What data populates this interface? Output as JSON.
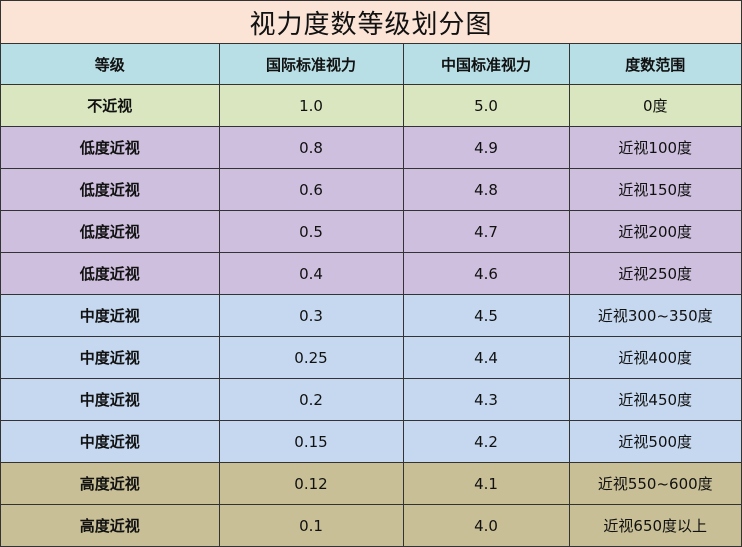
{
  "title": "视力度数等级划分图",
  "headers": [
    "等级",
    "国际标准视力",
    "中国标准视力",
    "度数范围"
  ],
  "rows": [
    {
      "grade": "不近视",
      "intl": "1.0",
      "cn": "5.0",
      "range": "0度",
      "tier": "none"
    },
    {
      "grade": "低度近视",
      "intl": "0.8",
      "cn": "4.9",
      "range": "近视100度",
      "tier": "low"
    },
    {
      "grade": "低度近视",
      "intl": "0.6",
      "cn": "4.8",
      "range": "近视150度",
      "tier": "low"
    },
    {
      "grade": "低度近视",
      "intl": "0.5",
      "cn": "4.7",
      "range": "近视200度",
      "tier": "low"
    },
    {
      "grade": "低度近视",
      "intl": "0.4",
      "cn": "4.6",
      "range": "近视250度",
      "tier": "low"
    },
    {
      "grade": "中度近视",
      "intl": "0.3",
      "cn": "4.5",
      "range": "近视300~350度",
      "tier": "mid"
    },
    {
      "grade": "中度近视",
      "intl": "0.25",
      "cn": "4.4",
      "range": "近视400度",
      "tier": "mid"
    },
    {
      "grade": "中度近视",
      "intl": "0.2",
      "cn": "4.3",
      "range": "近视450度",
      "tier": "mid"
    },
    {
      "grade": "中度近视",
      "intl": "0.15",
      "cn": "4.2",
      "range": "近视500度",
      "tier": "mid"
    },
    {
      "grade": "高度近视",
      "intl": "0.12",
      "cn": "4.1",
      "range": "近视550~600度",
      "tier": "high"
    },
    {
      "grade": "高度近视",
      "intl": "0.1",
      "cn": "4.0",
      "range": "近视650度以上",
      "tier": "high"
    }
  ],
  "colors": {
    "title_bg": "#fbe3d6",
    "header_bg": "#b8dfe6",
    "none": "#d9e6bf",
    "low": "#cdbfdd",
    "mid": "#c5d8ef",
    "high": "#c8bf97"
  }
}
